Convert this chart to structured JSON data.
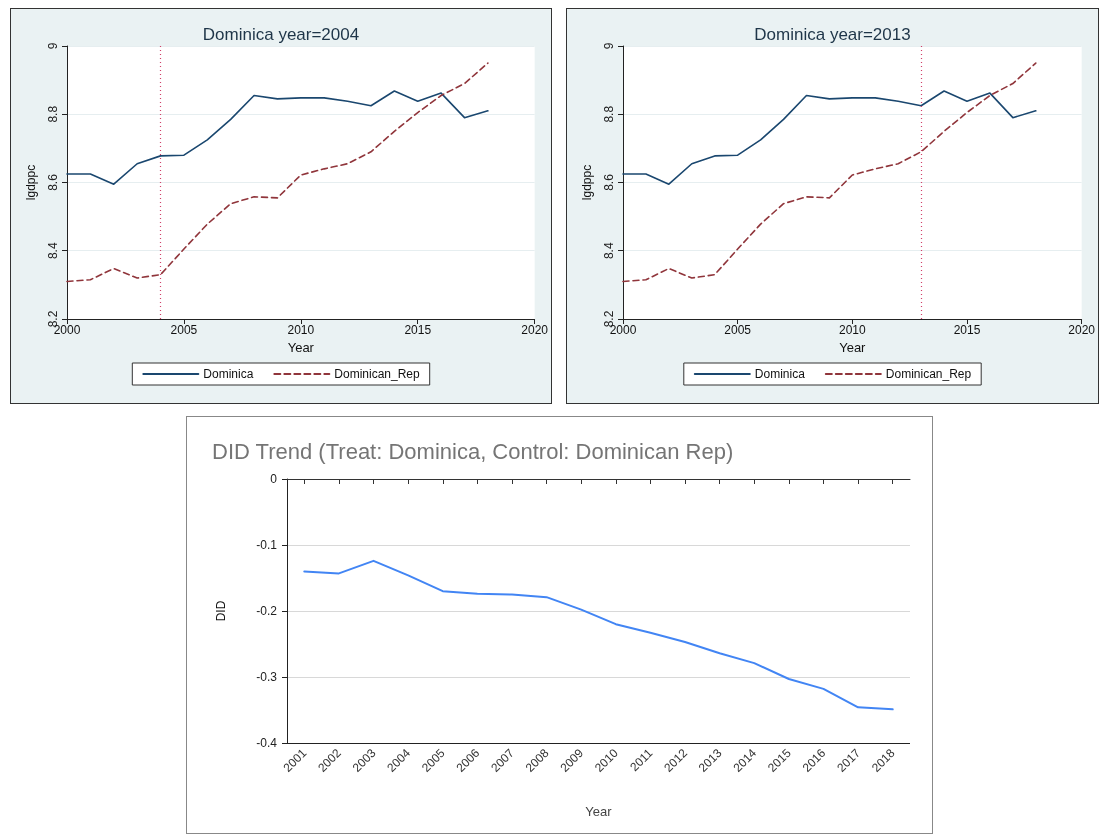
{
  "chart_data": [
    {
      "type": "line",
      "title": "Dominica year=2004",
      "xlabel": "Year",
      "ylabel": "lgdppc",
      "x": [
        2000,
        2001,
        2002,
        2003,
        2004,
        2005,
        2006,
        2007,
        2008,
        2009,
        2010,
        2011,
        2012,
        2013,
        2014,
        2015,
        2016,
        2017,
        2018
      ],
      "series": [
        {
          "name": "Dominica",
          "color": "#1a476f",
          "line_style": "solid",
          "values": [
            8.625,
            8.625,
            8.595,
            8.655,
            8.678,
            8.68,
            8.725,
            8.785,
            8.855,
            8.845,
            8.848,
            8.848,
            8.838,
            8.825,
            8.868,
            8.838,
            8.862,
            8.79,
            8.81
          ]
        },
        {
          "name": "Dominican_Rep",
          "color": "#90353b",
          "line_style": "dashed",
          "values": [
            8.31,
            8.315,
            8.348,
            8.32,
            8.33,
            8.405,
            8.478,
            8.538,
            8.558,
            8.555,
            8.622,
            8.64,
            8.655,
            8.69,
            8.75,
            8.805,
            8.855,
            8.89,
            8.95
          ]
        }
      ],
      "xlim": [
        2000,
        2020
      ],
      "xticks": [
        2000,
        2005,
        2010,
        2015,
        2020
      ],
      "ylim": [
        8.2,
        9
      ],
      "yticks": [
        8.2,
        8.4,
        8.6,
        8.8,
        9
      ],
      "ref_lines": [
        {
          "axis": "x",
          "value": 2004,
          "color": "#d0406a",
          "line_style": "dotted"
        }
      ],
      "grid": "y",
      "legend": "bottom",
      "marker": "none"
    },
    {
      "type": "line",
      "title": "Dominica year=2013",
      "xlabel": "Year",
      "ylabel": "lgdppc",
      "x": [
        2000,
        2001,
        2002,
        2003,
        2004,
        2005,
        2006,
        2007,
        2008,
        2009,
        2010,
        2011,
        2012,
        2013,
        2014,
        2015,
        2016,
        2017,
        2018
      ],
      "series": [
        {
          "name": "Dominica",
          "color": "#1a476f",
          "line_style": "solid",
          "values": [
            8.625,
            8.625,
            8.595,
            8.655,
            8.678,
            8.68,
            8.725,
            8.785,
            8.855,
            8.845,
            8.848,
            8.848,
            8.838,
            8.825,
            8.868,
            8.838,
            8.862,
            8.79,
            8.81
          ]
        },
        {
          "name": "Dominican_Rep",
          "color": "#90353b",
          "line_style": "dashed",
          "values": [
            8.31,
            8.315,
            8.348,
            8.32,
            8.33,
            8.405,
            8.478,
            8.538,
            8.558,
            8.555,
            8.622,
            8.64,
            8.655,
            8.69,
            8.75,
            8.805,
            8.855,
            8.89,
            8.95
          ]
        }
      ],
      "xlim": [
        2000,
        2020
      ],
      "xticks": [
        2000,
        2005,
        2010,
        2015,
        2020
      ],
      "ylim": [
        8.2,
        9
      ],
      "yticks": [
        8.2,
        8.4,
        8.6,
        8.8,
        9
      ],
      "ref_lines": [
        {
          "axis": "x",
          "value": 2013,
          "color": "#d0406a",
          "line_style": "dotted"
        }
      ],
      "grid": "y",
      "legend": "bottom",
      "marker": "none"
    },
    {
      "type": "line",
      "title": "DID Trend (Treat: Dominica, Control: Dominican Rep)",
      "xlabel": "Year",
      "ylabel": "DID",
      "categories": [
        "2001",
        "2002",
        "2003",
        "2004",
        "2005",
        "2006",
        "2007",
        "2008",
        "2009",
        "2010",
        "2011",
        "2012",
        "2013",
        "2014",
        "2015",
        "2016",
        "2017",
        "2018"
      ],
      "series": [
        {
          "color": "#4285f4",
          "line_style": "solid",
          "values": [
            -0.14,
            -0.143,
            -0.124,
            -0.146,
            -0.17,
            -0.174,
            -0.175,
            -0.179,
            -0.198,
            -0.22,
            -0.233,
            -0.247,
            -0.264,
            -0.279,
            -0.303,
            -0.318,
            -0.346,
            -0.349
          ]
        }
      ],
      "ylim": [
        -0.4,
        0
      ],
      "yticks": [
        -0.4,
        -0.3,
        -0.2,
        -0.1,
        0
      ],
      "grid": "y",
      "marker": "none"
    }
  ]
}
